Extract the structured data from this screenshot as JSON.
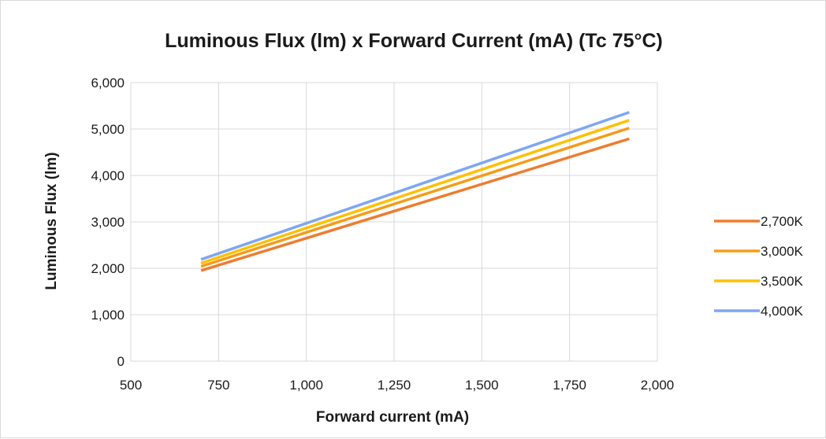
{
  "chart_data": {
    "type": "line",
    "title": "Luminous Flux (lm) x Forward Current (mA) (Tc 75°C)",
    "xlabel": "Forward current (mA)",
    "ylabel": "Luminous Flux (lm)",
    "xlim": [
      500,
      2000
    ],
    "ylim": [
      0,
      6000
    ],
    "x_ticks": [
      500,
      750,
      1000,
      1250,
      1500,
      1750,
      2000
    ],
    "y_ticks": [
      0,
      1000,
      2000,
      3000,
      4000,
      5000,
      6000
    ],
    "x_tick_labels": [
      "500",
      "750",
      "1,000",
      "1,250",
      "1,500",
      "1,750",
      "2,000"
    ],
    "y_tick_labels": [
      "0",
      "1,000",
      "2,000",
      "3,000",
      "4,000",
      "5,000",
      "6,000"
    ],
    "grid": true,
    "legend_position": "right",
    "series": [
      {
        "name": "2,700K",
        "color": "#ed7d31",
        "x": [
          700,
          1920
        ],
        "y": [
          1950,
          4790
        ]
      },
      {
        "name": "3,000K",
        "color": "#f59c1a",
        "x": [
          700,
          1920
        ],
        "y": [
          2040,
          5020
        ]
      },
      {
        "name": "3,500K",
        "color": "#ffc000",
        "x": [
          700,
          1920
        ],
        "y": [
          2110,
          5190
        ]
      },
      {
        "name": "4,000K",
        "color": "#7fa7f0",
        "x": [
          700,
          1920
        ],
        "y": [
          2190,
          5360
        ]
      }
    ]
  }
}
